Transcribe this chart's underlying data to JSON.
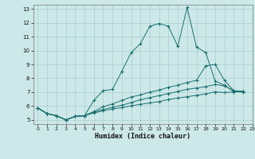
{
  "xlabel": "Humidex (Indice chaleur)",
  "xlim": [
    -0.5,
    23
  ],
  "ylim": [
    4.7,
    13.3
  ],
  "yticks": [
    5,
    6,
    7,
    8,
    9,
    10,
    11,
    12,
    13
  ],
  "xticks": [
    0,
    1,
    2,
    3,
    4,
    5,
    6,
    7,
    8,
    9,
    10,
    11,
    12,
    13,
    14,
    15,
    16,
    17,
    18,
    19,
    20,
    21,
    22,
    23
  ],
  "bg_color": "#cde8e8",
  "line_color": "#1a7070",
  "grid_color": "#aacece",
  "series": [
    [
      5.85,
      5.45,
      5.3,
      5.0,
      5.25,
      5.3,
      6.4,
      7.1,
      7.2,
      8.5,
      9.85,
      10.5,
      11.75,
      11.95,
      11.75,
      10.3,
      13.1,
      10.25,
      9.85,
      7.8,
      7.5,
      7.05,
      7.05
    ],
    [
      5.85,
      5.45,
      5.3,
      5.0,
      5.25,
      5.3,
      5.6,
      5.95,
      6.15,
      6.4,
      6.65,
      6.8,
      7.0,
      7.15,
      7.35,
      7.5,
      7.7,
      7.85,
      8.9,
      9.0,
      7.85,
      7.1,
      7.05
    ],
    [
      5.85,
      5.45,
      5.3,
      5.0,
      5.25,
      5.3,
      5.55,
      5.75,
      5.9,
      6.05,
      6.25,
      6.45,
      6.6,
      6.75,
      6.9,
      7.05,
      7.2,
      7.3,
      7.4,
      7.55,
      7.45,
      7.1,
      7.05
    ],
    [
      5.85,
      5.45,
      5.3,
      5.0,
      5.25,
      5.3,
      5.5,
      5.65,
      5.78,
      5.88,
      6.02,
      6.12,
      6.22,
      6.32,
      6.47,
      6.57,
      6.67,
      6.77,
      6.87,
      7.02,
      6.97,
      7.02,
      7.02
    ]
  ]
}
